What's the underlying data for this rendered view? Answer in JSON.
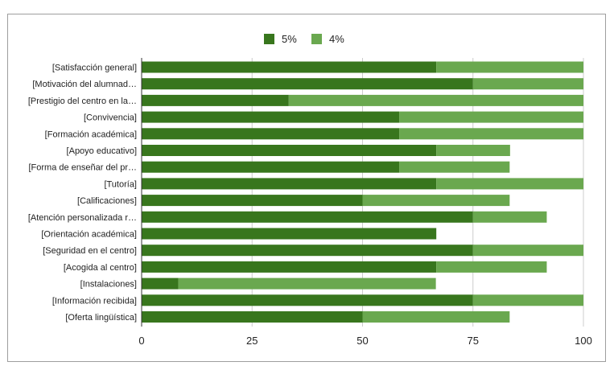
{
  "chart_data": {
    "type": "bar",
    "orientation": "horizontal",
    "stacked": true,
    "categories": [
      "[Satisfacción general]",
      "[Motivación del alumnad…",
      "[Prestigio del centro en la…",
      "[Convivencia]",
      "[Formación académica]",
      "[Apoyo educativo]",
      "[Forma de enseñar del pr…",
      "[Tutoría]",
      "[Calificaciones]",
      "[Atención personalizada r…",
      "[Orientación académica]",
      "[Seguridad en el centro]",
      "[Acogida al centro]",
      "[Instalaciones]",
      "[Información recibida]",
      "[Oferta lingüística]"
    ],
    "series": [
      {
        "name": "5%",
        "color": "#38761d",
        "values": [
          66.7,
          75,
          33.3,
          58.3,
          58.3,
          66.7,
          58.3,
          66.7,
          50,
          75,
          66.7,
          75,
          66.7,
          8.3,
          75,
          50
        ]
      },
      {
        "name": "4%",
        "color": "#6aa84f",
        "values": [
          33.3,
          25,
          66.7,
          41.7,
          41.7,
          16.7,
          25,
          33.3,
          33.3,
          16.7,
          0,
          25,
          25,
          58.3,
          25,
          33.3
        ]
      }
    ],
    "xlim": [
      0,
      100
    ],
    "xticks": [
      "0",
      "25",
      "50",
      "75",
      "100"
    ],
    "grid": true,
    "legend_position": "top"
  }
}
